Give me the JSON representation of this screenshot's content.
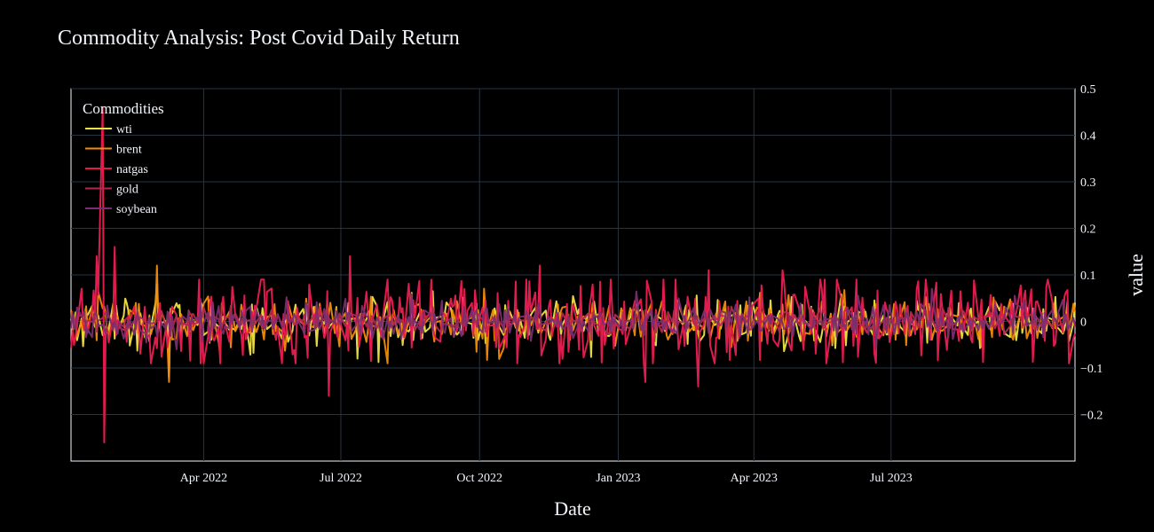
{
  "chart_data": {
    "type": "line",
    "title": "Commodity Analysis: Post Covid Daily Return",
    "xlabel": "Date",
    "ylabel": "value",
    "x_range": [
      "2022-01-03",
      "2023-10-31"
    ],
    "ylim": [
      -0.3,
      0.5
    ],
    "x_ticks": [
      "Apr 2022",
      "Jul 2022",
      "Oct 2022",
      "Jan 2023",
      "Apr 2023",
      "Jul 2023"
    ],
    "y_ticks": [
      "0.5",
      "0.4",
      "0.3",
      "0.2",
      "0.1",
      "0",
      "−0.1",
      "−0.2"
    ],
    "y_tick_values": [
      0.5,
      0.4,
      0.3,
      0.2,
      0.1,
      0,
      -0.1,
      -0.2
    ],
    "y_axis_side": "right",
    "grid": true,
    "legend_title": "Commodities",
    "legend_position": "top-left",
    "series": [
      {
        "name": "wti",
        "color": "#f0e442",
        "volatility": 0.025,
        "spikes": [
          [
            "2022-03-01",
            0.08
          ],
          [
            "2022-03-09",
            -0.12
          ],
          [
            "2022-07-12",
            -0.08
          ]
        ]
      },
      {
        "name": "brent",
        "color": "#f48c06",
        "volatility": 0.025,
        "spikes": [
          [
            "2022-03-01",
            0.12
          ],
          [
            "2022-03-09",
            -0.13
          ],
          [
            "2022-08-01",
            -0.09
          ]
        ]
      },
      {
        "name": "natgas",
        "color": "#e01b4d",
        "volatility": 0.05,
        "spikes": [
          [
            "2022-01-24",
            0.46
          ],
          [
            "2022-01-25",
            -0.26
          ],
          [
            "2022-01-20",
            0.14
          ],
          [
            "2022-02-01",
            0.16
          ],
          [
            "2022-06-23",
            -0.16
          ],
          [
            "2022-07-07",
            0.14
          ],
          [
            "2022-11-10",
            0.12
          ],
          [
            "2023-02-23",
            -0.14
          ],
          [
            "2023-03-02",
            0.11
          ],
          [
            "2023-01-19",
            -0.13
          ],
          [
            "2023-04-20",
            0.11
          ],
          [
            "2023-10-13",
            0.09
          ]
        ]
      },
      {
        "name": "gold",
        "color": "#b3294e",
        "volatility": 0.012,
        "spikes": []
      },
      {
        "name": "soybean",
        "color": "#7b2d6e",
        "volatility": 0.02,
        "spikes": [
          [
            "2023-07-28",
            0.07
          ],
          [
            "2022-03-14",
            -0.06
          ]
        ]
      }
    ]
  }
}
